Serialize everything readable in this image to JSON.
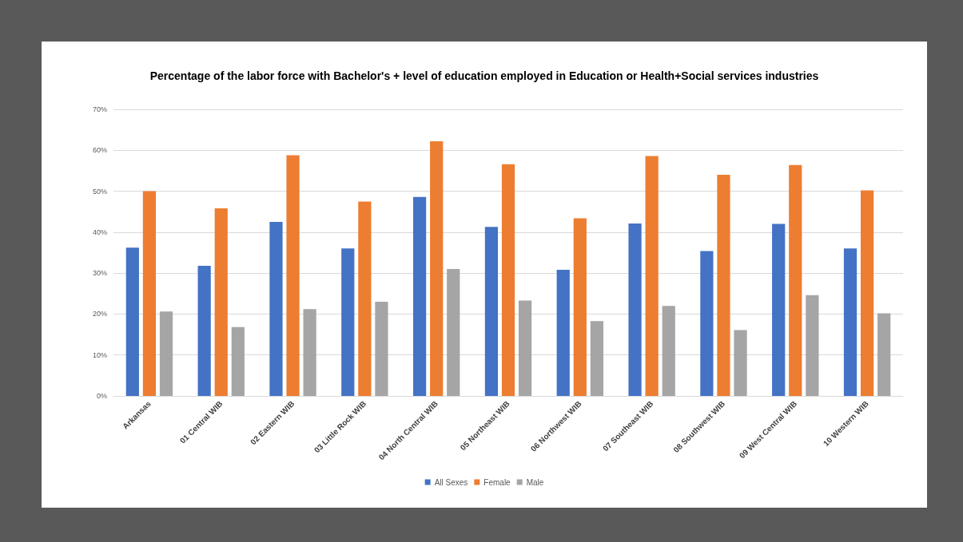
{
  "chart_data": {
    "type": "bar",
    "title": "Percentage of the labor force with Bachelor's + level of education employed in Education or Health+Social services industries",
    "categories": [
      "Arkansas",
      "01 Central WIB",
      "02 Eastern WIB",
      "03 Little Rock WIB",
      "04 North Central WIB",
      "05 Northeast WIB",
      "06 Northwest WIB",
      "07 Southeast WIB",
      "08 Southwest WIB",
      "09 West Central WIB",
      "10 Western WIB"
    ],
    "series": [
      {
        "name": "All Sexes",
        "color": "#4472c4",
        "values": [
          36.2,
          31.8,
          42.5,
          36,
          48.6,
          41.3,
          30.8,
          42.1,
          35.4,
          42,
          36
        ]
      },
      {
        "name": "Female",
        "color": "#ed7d31",
        "values": [
          50,
          45.8,
          58.8,
          47.5,
          62.2,
          56.6,
          43.4,
          58.6,
          54,
          56.4,
          50.2
        ]
      },
      {
        "name": "Male",
        "color": "#a5a5a5",
        "values": [
          20.6,
          16.8,
          21.2,
          23,
          31,
          23.3,
          18.3,
          22,
          16.1,
          24.6,
          20.2
        ]
      }
    ],
    "ylim": [
      0,
      70
    ],
    "yticks": [
      {
        "value": 0,
        "label": "0%"
      },
      {
        "value": 10,
        "label": "10%"
      },
      {
        "value": 20,
        "label": "20%"
      },
      {
        "value": 30,
        "label": "30%"
      },
      {
        "value": 40,
        "label": "40%"
      },
      {
        "value": 50,
        "label": "50%"
      },
      {
        "value": 60,
        "label": "60%"
      },
      {
        "value": 70,
        "label": "70%"
      }
    ],
    "grid": "y",
    "legend": "bottom"
  }
}
